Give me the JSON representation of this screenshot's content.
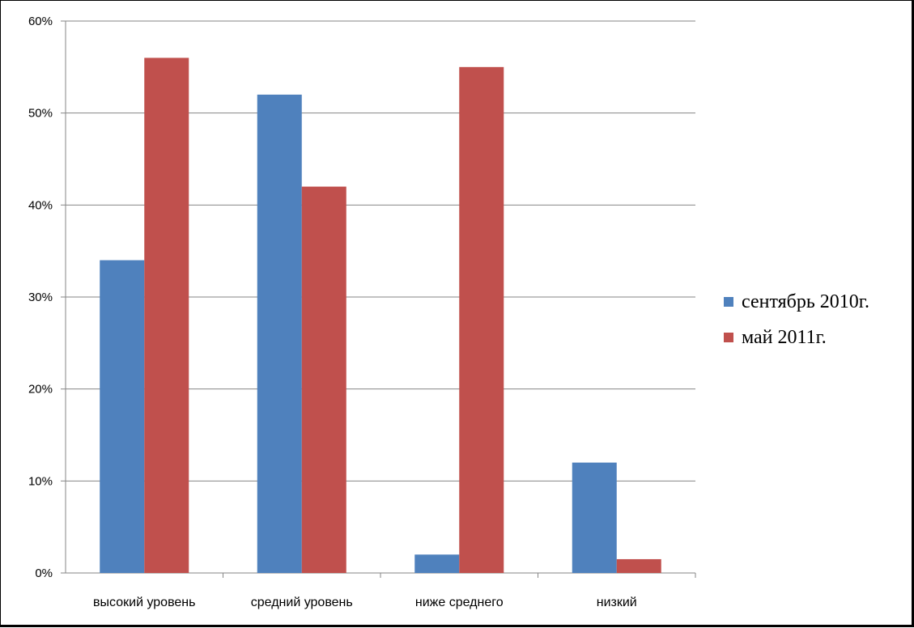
{
  "chart_data": {
    "type": "bar",
    "categories": [
      "высокий уровень",
      "средний уровень",
      "ниже среднего",
      "низкий"
    ],
    "series": [
      {
        "name": "сентябрь 2010г.",
        "color": "#4F81BD",
        "values": [
          34,
          52,
          2,
          12
        ]
      },
      {
        "name": "май 2011г.",
        "color": "#C0504D",
        "values": [
          56,
          42,
          55,
          1.5
        ]
      }
    ],
    "ylim": [
      0,
      60
    ],
    "yticks": [
      0,
      10,
      20,
      30,
      40,
      50,
      60
    ],
    "ytick_labels": [
      "0%",
      "10%",
      "20%",
      "30%",
      "40%",
      "50%",
      "60%"
    ],
    "grid": true,
    "legend_position": "right",
    "title": "",
    "xlabel": "",
    "ylabel": ""
  }
}
